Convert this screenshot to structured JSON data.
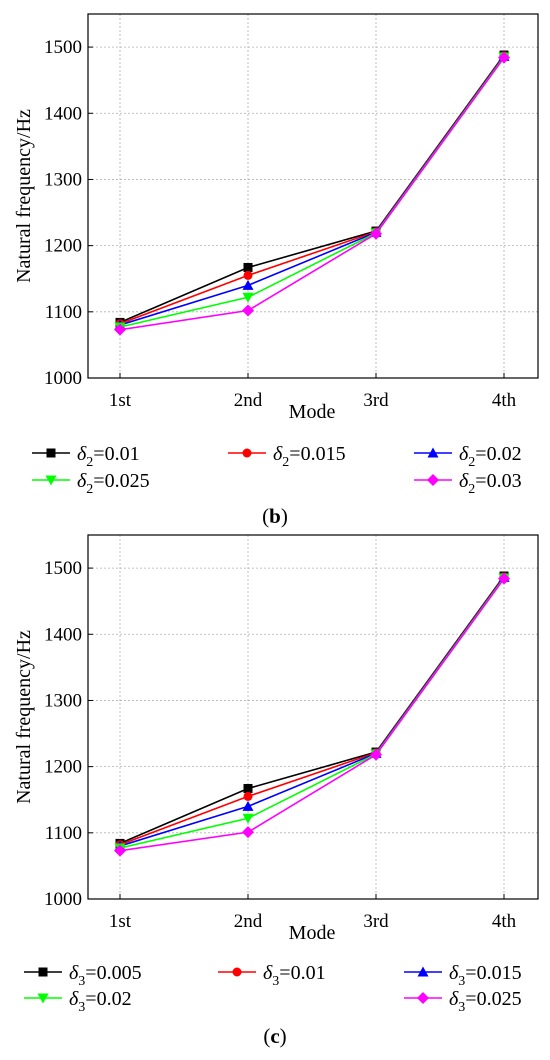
{
  "chart_data": [
    {
      "type": "line",
      "caption_open": "(",
      "caption": "b",
      "caption_close": ")",
      "xlabel": "Mode",
      "ylabel": "Natural frequency/Hz",
      "categories": [
        "1st",
        "2nd",
        "3rd",
        "4th"
      ],
      "ylim": [
        1000,
        1550
      ],
      "yticks": [
        1000,
        1100,
        1200,
        1300,
        1400,
        1500
      ],
      "grid": true,
      "legend_position": "bottom",
      "legend_symbol": "δ",
      "legend_subscript": "2",
      "series": [
        {
          "name": "0.01",
          "marker": "square",
          "color": "#000000",
          "values": [
            1084,
            1167,
            1222,
            1488
          ]
        },
        {
          "name": "0.015",
          "marker": "circle",
          "color": "#ff0000",
          "values": [
            1082,
            1155,
            1221,
            1487
          ]
        },
        {
          "name": "0.02",
          "marker": "triangle-up",
          "color": "#0000ff",
          "values": [
            1080,
            1140,
            1220,
            1486
          ]
        },
        {
          "name": "0.025",
          "marker": "triangle-down",
          "color": "#00ff00",
          "values": [
            1077,
            1122,
            1219,
            1485
          ]
        },
        {
          "name": "0.03",
          "marker": "diamond",
          "color": "#ff00ff",
          "values": [
            1073,
            1102,
            1218,
            1484
          ]
        }
      ]
    },
    {
      "type": "line",
      "caption_open": "(",
      "caption": "c",
      "caption_close": ")",
      "xlabel": "Mode",
      "ylabel": "Natural frequency/Hz",
      "categories": [
        "1st",
        "2nd",
        "3rd",
        "4th"
      ],
      "ylim": [
        1000,
        1550
      ],
      "yticks": [
        1000,
        1100,
        1200,
        1300,
        1400,
        1500
      ],
      "grid": true,
      "legend_position": "bottom",
      "legend_symbol": "δ",
      "legend_subscript": "3",
      "series": [
        {
          "name": "0.005",
          "marker": "square",
          "color": "#000000",
          "values": [
            1084,
            1167,
            1222,
            1488
          ]
        },
        {
          "name": "0.01",
          "marker": "circle",
          "color": "#ff0000",
          "values": [
            1082,
            1155,
            1221,
            1487
          ]
        },
        {
          "name": "0.015",
          "marker": "triangle-up",
          "color": "#0000ff",
          "values": [
            1080,
            1140,
            1220,
            1486
          ]
        },
        {
          "name": "0.02",
          "marker": "triangle-down",
          "color": "#00ff00",
          "values": [
            1077,
            1122,
            1219,
            1485
          ]
        },
        {
          "name": "0.025",
          "marker": "diamond",
          "color": "#ff00ff",
          "values": [
            1073,
            1101,
            1218,
            1484
          ]
        }
      ]
    }
  ]
}
